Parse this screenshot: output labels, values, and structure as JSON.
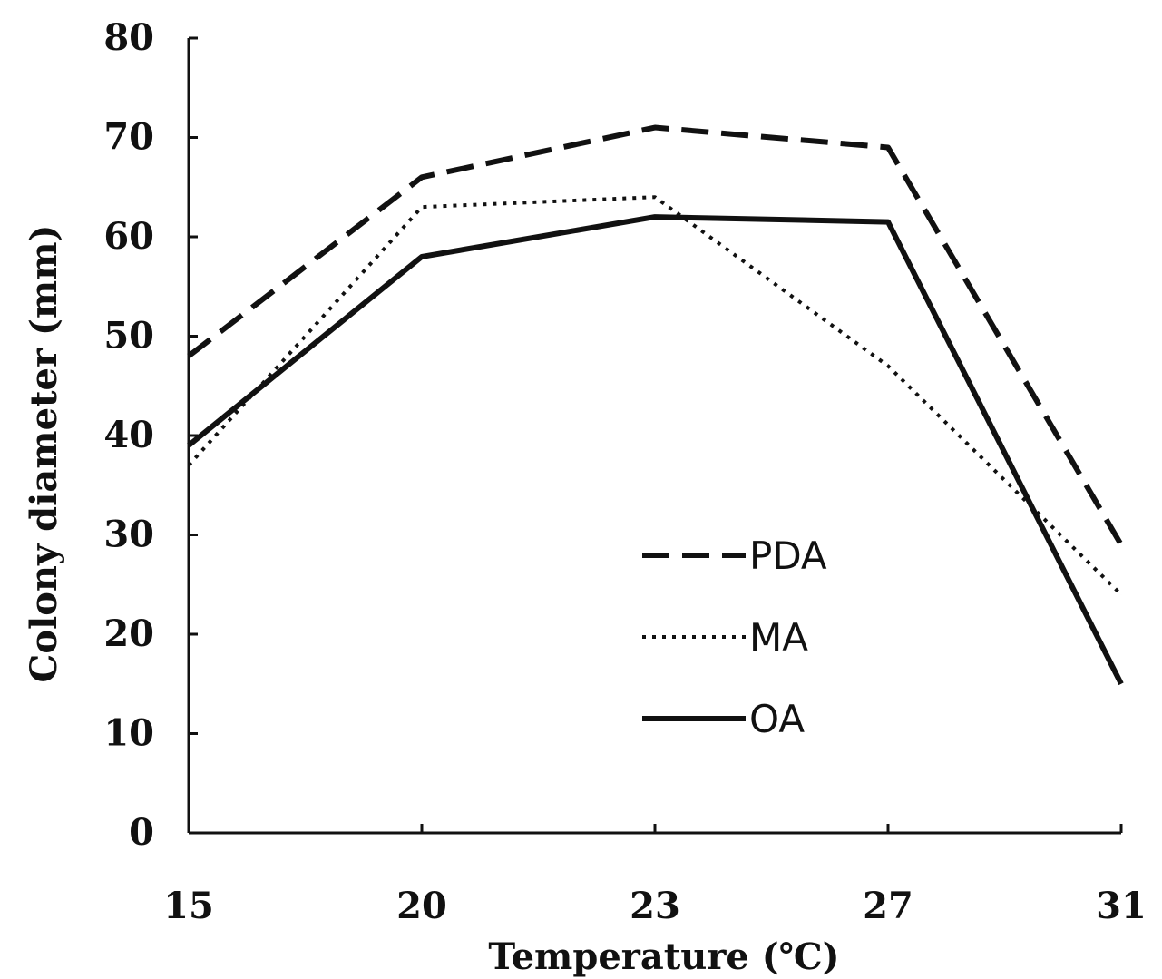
{
  "chart_data": {
    "type": "line",
    "title": "",
    "xlabel": "Temperature (℃)",
    "ylabel": "Colony diameter (mm)",
    "categories": [
      "15",
      "20",
      "23",
      "27",
      "31"
    ],
    "ylim": [
      0,
      80
    ],
    "yticks": [
      0,
      10,
      20,
      30,
      40,
      50,
      60,
      70,
      80
    ],
    "grid": false,
    "legend_position": "bottom-right",
    "series": [
      {
        "name": "PDA",
        "style": "dashed",
        "color": "#111111",
        "values": [
          48,
          66,
          71,
          69,
          29
        ]
      },
      {
        "name": "MA",
        "style": "dotted",
        "color": "#111111",
        "values": [
          37,
          63,
          64,
          47,
          24
        ]
      },
      {
        "name": "OA",
        "style": "solid",
        "color": "#111111",
        "values": [
          39,
          58,
          62,
          61.5,
          15
        ]
      }
    ]
  }
}
